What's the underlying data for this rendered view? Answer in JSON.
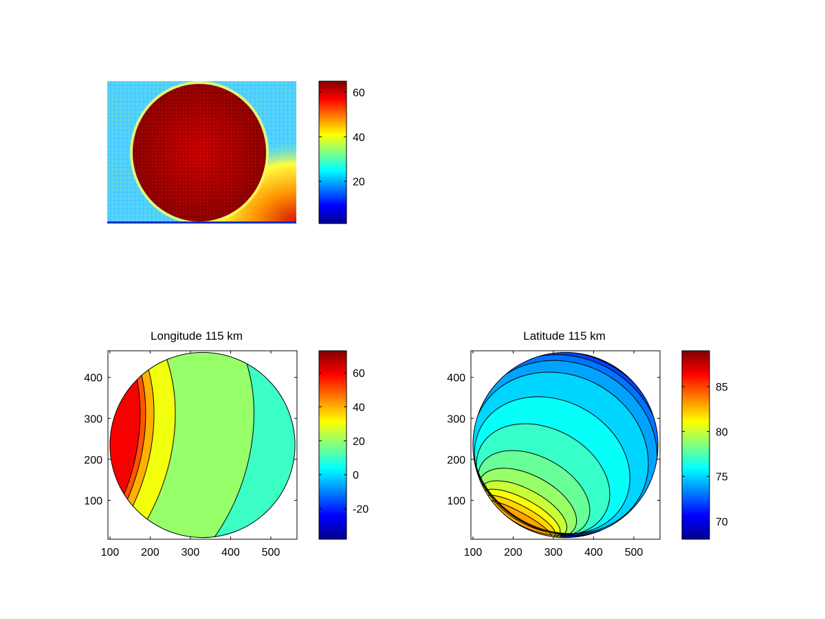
{
  "colormap": [
    "#00008f",
    "#0000ff",
    "#0080ff",
    "#00ffff",
    "#80ff80",
    "#ffff00",
    "#ff8000",
    "#ff0000",
    "#800000"
  ],
  "chart_data": [
    {
      "type": "heatmap",
      "name": "image",
      "title": "",
      "xlabel": "",
      "ylabel": "",
      "description_values": {
        "background_level": 27,
        "disk_level": 62,
        "corner_level": 48
      },
      "colorbar": {
        "min": 1,
        "max": 65,
        "ticks": [
          20,
          40,
          60
        ],
        "tick_labels": [
          "20",
          "40",
          "60"
        ]
      },
      "grid": false
    },
    {
      "type": "heatmap",
      "name": "longitude",
      "title": "Longitude 115 km",
      "xlabel": "",
      "ylabel": "",
      "xlim": [
        95,
        565
      ],
      "ylim": [
        5,
        465
      ],
      "x_ticks": [
        100,
        200,
        300,
        400,
        500
      ],
      "x_tick_labels": [
        "100",
        "200",
        "300",
        "400",
        "500"
      ],
      "y_ticks": [
        100,
        200,
        300,
        400
      ],
      "y_tick_labels": [
        "100",
        "200",
        "300",
        "400"
      ],
      "disk": {
        "center": [
          330,
          235
        ],
        "radius": 230
      },
      "contour_levels": [
        -30,
        -20,
        -10,
        0,
        10,
        20,
        30,
        40,
        50,
        60
      ],
      "colorbar": {
        "min": -38,
        "max": 73,
        "ticks": [
          -20,
          0,
          20,
          40,
          60
        ],
        "tick_labels": [
          "-20",
          "0",
          "20",
          "40",
          "60"
        ]
      },
      "grid": false
    },
    {
      "type": "heatmap",
      "name": "latitude",
      "title": "Latitude 115 km",
      "xlabel": "",
      "ylabel": "",
      "xlim": [
        95,
        565
      ],
      "ylim": [
        5,
        465
      ],
      "x_ticks": [
        100,
        200,
        300,
        400,
        500
      ],
      "x_tick_labels": [
        "100",
        "200",
        "300",
        "400",
        "500"
      ],
      "y_ticks": [
        100,
        200,
        300,
        400
      ],
      "y_tick_labels": [
        "100",
        "200",
        "300",
        "400"
      ],
      "disk": {
        "center": [
          330,
          235
        ],
        "radius": 230
      },
      "contour_levels": [
        70,
        71,
        72,
        73,
        74,
        75,
        76,
        77,
        78,
        79,
        80,
        81,
        82,
        83,
        84,
        85,
        86,
        87,
        88
      ],
      "colorbar": {
        "min": 68,
        "max": 89,
        "ticks": [
          70,
          75,
          80,
          85
        ],
        "tick_labels": [
          "70",
          "75",
          "80",
          "85"
        ]
      },
      "grid": false
    }
  ]
}
